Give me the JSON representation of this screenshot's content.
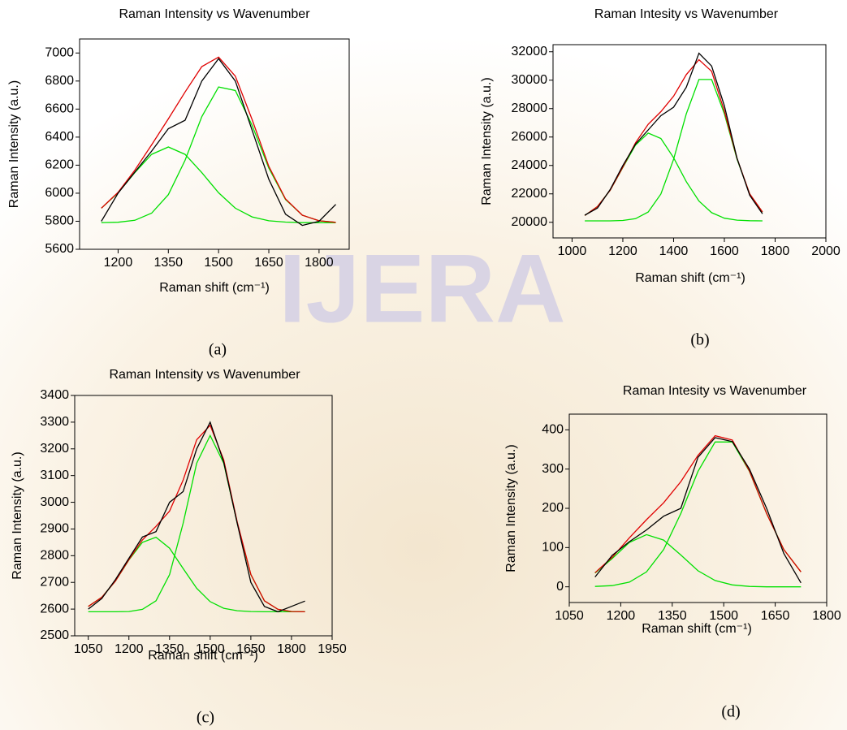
{
  "watermark": "IJERA",
  "chart_data": [
    {
      "type": "line",
      "title": "Raman Intensity vs Wavenumber",
      "xlabel": "Raman shift (cm⁻¹)",
      "ylabel": "Raman Intensity (a.u.)",
      "caption": "(a)",
      "x": [
        1150,
        1200,
        1250,
        1300,
        1350,
        1400,
        1450,
        1500,
        1550,
        1600,
        1650,
        1700,
        1750,
        1800,
        1850
      ],
      "xlim": [
        1085,
        1890
      ],
      "xticks": [
        1200,
        1350,
        1500,
        1650,
        1800
      ],
      "ylim": [
        5600,
        7100
      ],
      "yticks": [
        5600,
        5800,
        6000,
        6200,
        6400,
        6600,
        6800,
        7000
      ],
      "series": [
        {
          "color": "#00e000",
          "values": [
            5893,
            6003,
            6147,
            6277,
            6330,
            6277,
            6147,
            6003,
            5893,
            5831,
            5803,
            5794,
            5790,
            5790,
            5790
          ]
        },
        {
          "color": "#00e000",
          "values": [
            5790,
            5793,
            5807,
            5858,
            5990,
            6235,
            6546,
            6758,
            6732,
            6485,
            6179,
            5955,
            5843,
            5803,
            5792
          ]
        },
        {
          "color": "#e00000",
          "values": [
            5893,
            6006,
            6164,
            6345,
            6530,
            6722,
            6903,
            6971,
            6835,
            6526,
            6192,
            5959,
            5843,
            5803,
            5792
          ]
        },
        {
          "color": "#000000",
          "values": [
            5800,
            6000,
            6150,
            6300,
            6460,
            6520,
            6800,
            6960,
            6800,
            6450,
            6100,
            5850,
            5770,
            5800,
            5920
          ]
        }
      ]
    },
    {
      "type": "line",
      "title": "Raman Intesity vs Wavenumber",
      "xlabel": "Raman shift (cm⁻¹)",
      "ylabel": "Raman Intensity (a.u.)",
      "caption": "(b)",
      "x": [
        1050,
        1100,
        1150,
        1200,
        1250,
        1300,
        1350,
        1400,
        1450,
        1500,
        1550,
        1600,
        1650,
        1700,
        1750
      ],
      "xlim": [
        925,
        2000
      ],
      "xticks": [
        1000,
        1200,
        1400,
        1600,
        1800,
        2000
      ],
      "ylim": [
        18900,
        32500
      ],
      "yticks": [
        20000,
        22000,
        24000,
        26000,
        28000,
        30000,
        32000
      ],
      "series": [
        {
          "color": "#00e000",
          "values": [
            20480,
            21105,
            22250,
            23860,
            25440,
            26275,
            25900,
            24540,
            22860,
            21495,
            20675,
            20290,
            20152,
            20113,
            20102
          ]
        },
        {
          "color": "#00e000",
          "values": [
            20100,
            20100,
            20100,
            20130,
            20256,
            20725,
            21985,
            24440,
            27630,
            30050,
            30050,
            27630,
            24440,
            21985,
            20725
          ]
        },
        {
          "color": "#e00000",
          "values": [
            20480,
            21105,
            22250,
            23890,
            25596,
            26900,
            27785,
            28880,
            30390,
            31445,
            30625,
            27820,
            24492,
            21998,
            20727
          ]
        },
        {
          "color": "#000000",
          "values": [
            20500,
            21000,
            22300,
            24000,
            25500,
            26500,
            27500,
            28100,
            29500,
            31900,
            31000,
            28200,
            24500,
            21900,
            20600
          ]
        }
      ]
    },
    {
      "type": "line",
      "title": "Raman Intensity vs Wavenumber",
      "xlabel": "Raman shift (cm⁻¹)",
      "ylabel": "Raman Intensity (a.u.)",
      "caption": "(c)",
      "x": [
        1050,
        1100,
        1150,
        1200,
        1250,
        1300,
        1350,
        1400,
        1450,
        1500,
        1550,
        1600,
        1650,
        1700,
        1750,
        1800,
        1850
      ],
      "xlim": [
        1000,
        1950
      ],
      "xticks": [
        1050,
        1200,
        1350,
        1500,
        1650,
        1800,
        1950
      ],
      "ylim": [
        2500,
        3400
      ],
      "yticks": [
        2500,
        2600,
        2700,
        2800,
        2900,
        3000,
        3100,
        3200,
        3300,
        3400
      ],
      "series": [
        {
          "color": "#00e000",
          "values": [
            2610,
            2644,
            2705,
            2784,
            2850,
            2869,
            2828,
            2752,
            2678,
            2628,
            2603,
            2594,
            2591,
            2590,
            2590,
            2590,
            2590
          ]
        },
        {
          "color": "#00e000",
          "values": [
            2590,
            2590,
            2590,
            2591,
            2599,
            2631,
            2729,
            2921,
            3146,
            3250,
            3146,
            2921,
            2729,
            2631,
            2599,
            2591,
            2590
          ]
        },
        {
          "color": "#e00000",
          "values": [
            2610,
            2644,
            2705,
            2785,
            2859,
            2910,
            2967,
            3083,
            3234,
            3288,
            3159,
            2925,
            2730,
            2631,
            2599,
            2591,
            2590
          ]
        },
        {
          "color": "#000000",
          "values": [
            2600,
            2640,
            2710,
            2790,
            2870,
            2890,
            3000,
            3040,
            3200,
            3300,
            3150,
            2920,
            2700,
            2610,
            2590,
            2610,
            2630
          ]
        }
      ]
    },
    {
      "type": "line",
      "title": "Raman Intesity vs Wavenumber",
      "xlabel": "Raman shift (cm⁻¹)",
      "ylabel": "Raman Intensity (a.u.)",
      "caption": "(d)",
      "x": [
        1125,
        1175,
        1225,
        1275,
        1325,
        1375,
        1425,
        1475,
        1525,
        1575,
        1625,
        1675,
        1725
      ],
      "xlim": [
        1050,
        1800
      ],
      "xticks": [
        1050,
        1200,
        1350,
        1500,
        1650,
        1800
      ],
      "ylim": [
        -40,
        440
      ],
      "yticks": [
        0,
        100,
        200,
        300,
        400
      ],
      "series": [
        {
          "color": "#00e000",
          "values": [
            35,
            72,
            113,
            133,
            119,
            81,
            41,
            16,
            5,
            1,
            0,
            0,
            0
          ]
        },
        {
          "color": "#00e000",
          "values": [
            1,
            3,
            12,
            38,
            95,
            187,
            294,
            369,
            369,
            294,
            187,
            95,
            38
          ]
        },
        {
          "color": "#e00000",
          "values": [
            36,
            75,
            125,
            171,
            214,
            268,
            335,
            385,
            374,
            295,
            187,
            95,
            38
          ]
        },
        {
          "color": "#000000",
          "values": [
            25,
            80,
            115,
            145,
            180,
            200,
            330,
            380,
            370,
            300,
            200,
            85,
            10
          ]
        }
      ]
    }
  ]
}
